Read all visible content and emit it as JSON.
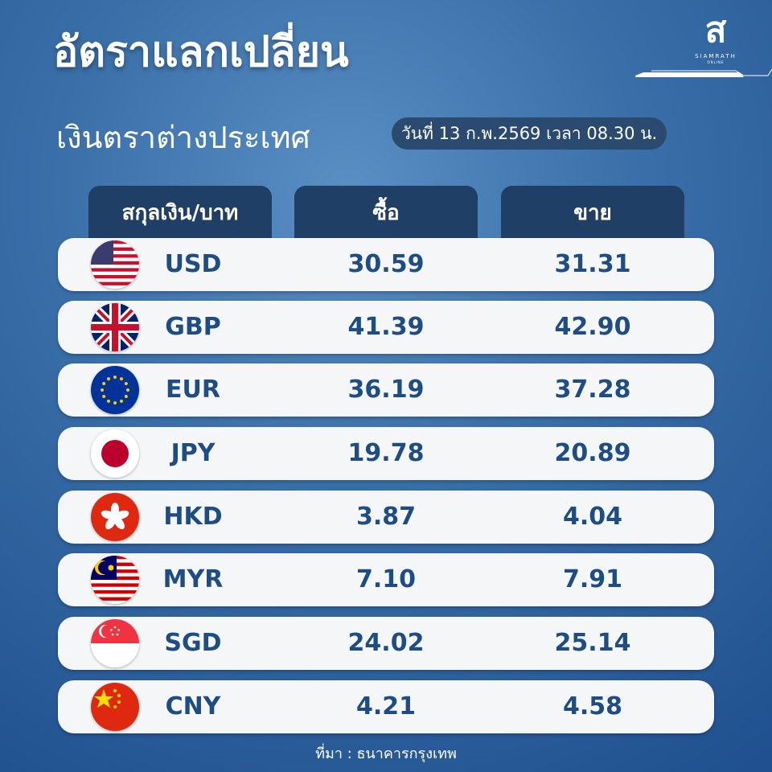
{
  "title": "อัตราแลกเปลี่ยน",
  "subtitle": "เงินตราต่างประเทศ",
  "date": "วันที่ 13 ก.พ.2569 เวลา 08.30 น.",
  "logo": {
    "name": "SIAMRATH",
    "sub": "ONLINE"
  },
  "headers": [
    "สกุลเงิน/บาท",
    "ซื้อ",
    "ขาย"
  ],
  "rows": [
    {
      "code": "USD",
      "buy": "30.59",
      "sell": "31.31",
      "flag": "us-flag"
    },
    {
      "code": "GBP",
      "buy": "41.39",
      "sell": "42.90",
      "flag": "uk-flag"
    },
    {
      "code": "EUR",
      "buy": "36.19",
      "sell": "37.28",
      "flag": "eu-flag"
    },
    {
      "code": "JPY",
      "buy": "19.78",
      "sell": "20.89",
      "flag": "japan-flag"
    },
    {
      "code": "HKD",
      "buy": "3.87",
      "sell": "4.04",
      "flag": "hong-kong-flag"
    },
    {
      "code": "MYR",
      "buy": "7.10",
      "sell": "7.91",
      "flag": "malaysia-flag"
    },
    {
      "code": "SGD",
      "buy": "24.02",
      "sell": "25.14",
      "flag": "singapore-flag"
    },
    {
      "code": "CNY",
      "buy": "4.21",
      "sell": "4.58",
      "flag": "china-flag"
    }
  ],
  "source": "ที่มา : ธนาคารกรุงเทพ",
  "colors": {
    "header": "#1f3f66",
    "value_text": "#1e4d86",
    "row_bg": "#f5f6f8"
  }
}
